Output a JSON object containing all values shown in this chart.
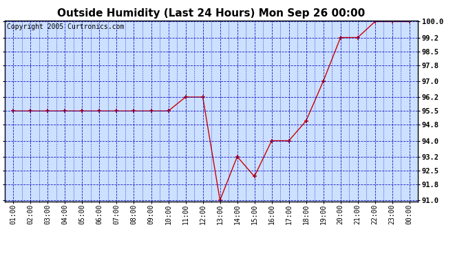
{
  "title": "Outside Humidity (Last 24 Hours) Mon Sep 26 00:00",
  "copyright": "Copyright 2005 Curtronics.com",
  "x_labels": [
    "01:00",
    "02:00",
    "03:00",
    "04:00",
    "05:00",
    "06:00",
    "07:00",
    "08:00",
    "09:00",
    "10:00",
    "11:00",
    "12:00",
    "13:00",
    "14:00",
    "15:00",
    "16:00",
    "17:00",
    "18:00",
    "19:00",
    "20:00",
    "21:00",
    "22:00",
    "23:00",
    "00:00"
  ],
  "x_values": [
    1,
    2,
    3,
    4,
    5,
    6,
    7,
    8,
    9,
    10,
    11,
    12,
    13,
    14,
    15,
    16,
    17,
    18,
    19,
    20,
    21,
    22,
    23,
    24
  ],
  "y_values": [
    95.5,
    95.5,
    95.5,
    95.5,
    95.5,
    95.5,
    95.5,
    95.5,
    95.5,
    95.5,
    96.2,
    96.2,
    91.0,
    93.2,
    92.2,
    94.0,
    94.0,
    95.0,
    97.0,
    99.2,
    99.2,
    100.0,
    100.0,
    100.0
  ],
  "ylim": [
    90.95,
    100.05
  ],
  "yticks": [
    91.0,
    91.8,
    92.5,
    93.2,
    94.0,
    94.8,
    95.5,
    96.2,
    97.0,
    97.8,
    98.5,
    99.2,
    100.0
  ],
  "ytick_labels": [
    "91.0",
    "91.8",
    "92.5",
    "93.2",
    "94.0",
    "94.8",
    "95.5",
    "96.2",
    "97.0",
    "97.8",
    "98.5",
    "99.2",
    "100.0"
  ],
  "line_color": "#cc0000",
  "marker": "+",
  "marker_color": "#cc0000",
  "bg_color": "#cce0ff",
  "grid_color": "#0000bb",
  "title_fontsize": 11,
  "copyright_fontsize": 7,
  "tick_fontsize": 7,
  "ytick_fontsize": 7.5
}
